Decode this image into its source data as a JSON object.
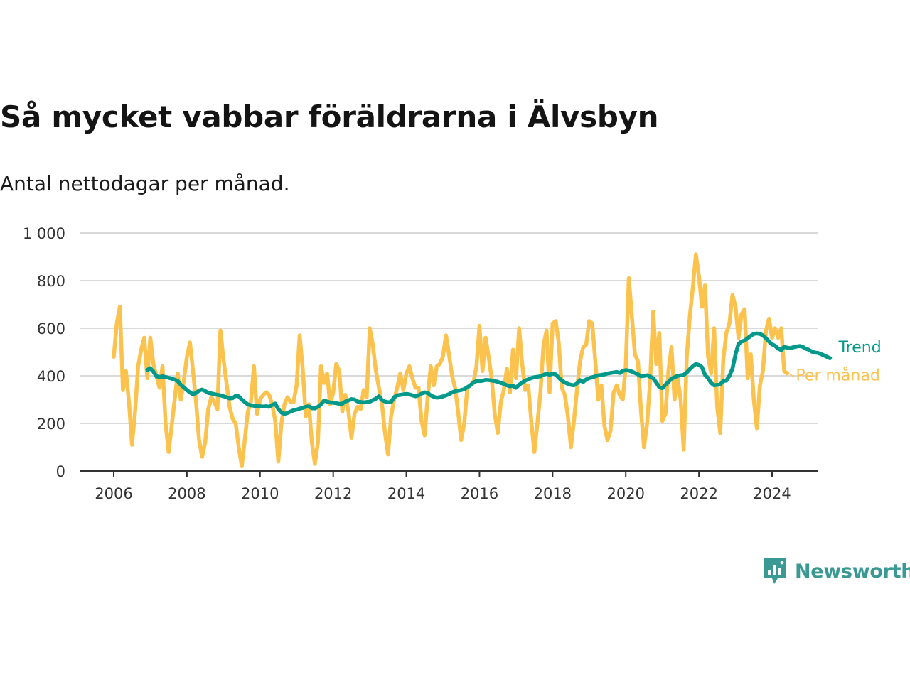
{
  "title": "Så mycket vabbar föräldrarna i Älvsbyn",
  "subtitle": "Antal nettodagar per månad.",
  "brand": {
    "name": "Newsworthy",
    "icon": "newsworthy-logo-icon"
  },
  "colors": {
    "trend": "#00998a",
    "monthly": "#fbc34d",
    "grid": "#d9d9d9",
    "axis": "#333333"
  },
  "chart_data": {
    "type": "line",
    "grid": true,
    "ylim": [
      0,
      1000
    ],
    "xlim": [
      2005.6,
      2025.8
    ],
    "y_ticks": [
      0,
      200,
      400,
      600,
      800,
      1000
    ],
    "y_tick_labels": [
      "0",
      "200",
      "400",
      "600",
      "800",
      "1 000"
    ],
    "x_ticks": [
      2006,
      2008,
      2010,
      2012,
      2014,
      2016,
      2018,
      2020,
      2022,
      2024
    ],
    "x_tick_labels": [
      "2006",
      "2008",
      "2010",
      "2012",
      "2014",
      "2016",
      "2018",
      "2020",
      "2022",
      "2024"
    ],
    "series": [
      {
        "name": "Per månad",
        "start": "2006-01",
        "values": [
          480,
          620,
          690,
          340,
          420,
          290,
          110,
          250,
          440,
          510,
          560,
          390,
          560,
          450,
          400,
          350,
          440,
          200,
          80,
          190,
          300,
          410,
          300,
          380,
          480,
          540,
          420,
          290,
          130,
          60,
          120,
          260,
          310,
          290,
          260,
          590,
          470,
          370,
          270,
          220,
          200,
          100,
          20,
          130,
          250,
          290,
          440,
          240,
          300,
          320,
          330,
          320,
          280,
          210,
          40,
          200,
          280,
          310,
          290,
          290,
          360,
          570,
          430,
          230,
          280,
          120,
          30,
          120,
          440,
          370,
          410,
          280,
          330,
          450,
          420,
          250,
          320,
          250,
          140,
          240,
          270,
          260,
          340,
          310,
          600,
          530,
          420,
          350,
          280,
          160,
          70,
          230,
          300,
          350,
          410,
          340,
          410,
          440,
          390,
          350,
          350,
          210,
          150,
          310,
          440,
          360,
          440,
          450,
          480,
          570,
          490,
          400,
          350,
          250,
          130,
          200,
          350,
          360,
          370,
          440,
          610,
          420,
          560,
          480,
          390,
          240,
          160,
          290,
          340,
          430,
          330,
          510,
          390,
          600,
          450,
          340,
          360,
          210,
          80,
          200,
          330,
          530,
          590,
          330,
          620,
          630,
          540,
          350,
          320,
          230,
          100,
          210,
          340,
          460,
          520,
          530,
          630,
          620,
          460,
          300,
          360,
          190,
          130,
          170,
          330,
          360,
          320,
          300,
          440,
          810,
          650,
          490,
          460,
          250,
          100,
          200,
          380,
          670,
          450,
          580,
          210,
          240,
          420,
          520,
          300,
          390,
          300,
          90,
          480,
          650,
          770,
          910,
          820,
          690,
          780,
          480,
          410,
          600,
          270,
          160,
          470,
          580,
          620,
          740,
          690,
          560,
          660,
          680,
          390,
          490,
          300,
          180,
          360,
          420,
          590,
          640,
          560,
          600,
          560,
          600,
          420,
          410
        ]
      },
      {
        "name": "Trend",
        "start": "2006-12",
        "values": [
          425,
          432,
          418,
          398,
          395,
          398,
          395,
          392,
          388,
          384,
          378,
          362,
          352,
          340,
          330,
          322,
          328,
          338,
          342,
          336,
          328,
          326,
          323,
          320,
          318,
          314,
          310,
          305,
          306,
          316,
          314,
          300,
          290,
          280,
          276,
          274,
          272,
          272,
          271,
          272,
          270,
          278,
          283,
          260,
          246,
          240,
          244,
          250,
          255,
          258,
          262,
          265,
          270,
          272,
          264,
          263,
          270,
          280,
          296,
          292,
          288,
          287,
          285,
          282,
          283,
          292,
          296,
          302,
          300,
          292,
          290,
          288,
          290,
          291,
          298,
          304,
          314,
          298,
          292,
          289,
          290,
          310,
          318,
          320,
          322,
          324,
          322,
          318,
          314,
          318,
          325,
          330,
          328,
          318,
          312,
          308,
          310,
          313,
          318,
          323,
          330,
          335,
          338,
          340,
          344,
          352,
          360,
          372,
          378,
          378,
          379,
          383,
          382,
          380,
          378,
          375,
          370,
          366,
          360,
          356,
          358,
          350,
          362,
          372,
          380,
          385,
          390,
          394,
          396,
          398,
          404,
          410,
          404,
          410,
          406,
          392,
          380,
          372,
          366,
          362,
          360,
          368,
          382,
          374,
          385,
          390,
          394,
          398,
          402,
          404,
          406,
          410,
          412,
          414,
          416,
          412,
          420,
          424,
          422,
          418,
          412,
          406,
          398,
          400,
          402,
          396,
          390,
          372,
          352,
          348,
          362,
          374,
          388,
          394,
          400,
          402,
          404,
          414,
          428,
          440,
          450,
          446,
          436,
          404,
          390,
          370,
          360,
          362,
          364,
          378,
          380,
          400,
          430,
          490,
          534,
          544,
          548,
          558,
          568,
          576,
          578,
          576,
          570,
          558,
          544,
          532,
          526,
          514,
          508,
          522,
          518,
          516,
          520,
          523,
          525,
          522,
          514,
          510,
          502,
          498,
          496,
          492,
          486,
          480,
          474
        ]
      }
    ]
  }
}
